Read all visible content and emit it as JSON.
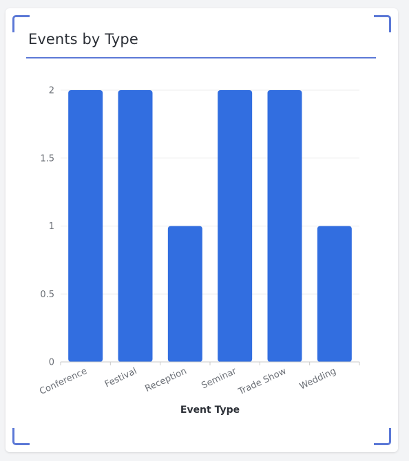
{
  "card": {
    "title": "Events by Type"
  },
  "colors": {
    "bar": "#326ee0",
    "accent": "#5b78d6",
    "grid": "#ececec",
    "axis": "#c9c9c9",
    "tick_text": "#6b6f76"
  },
  "chart_data": {
    "type": "bar",
    "title": "Events by Type",
    "xlabel": "Event Type",
    "ylabel": "",
    "categories": [
      "Conference",
      "Festival",
      "Reception",
      "Seminar",
      "Trade Show",
      "Wedding"
    ],
    "values": [
      2,
      2,
      1,
      2,
      2,
      1
    ],
    "ylim": [
      0,
      2
    ],
    "yticks": [
      0,
      0.5,
      1,
      1.5,
      2
    ],
    "ytick_labels": [
      "0",
      "0.5",
      "1",
      "1.5",
      "2"
    ],
    "grid": true,
    "legend": "none"
  }
}
